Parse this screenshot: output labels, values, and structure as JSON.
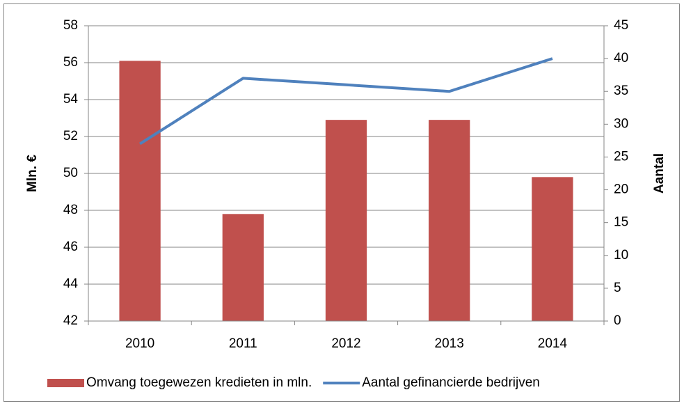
{
  "chart_data": {
    "type": "bar_line",
    "categories": [
      "2010",
      "2011",
      "2012",
      "2013",
      "2014"
    ],
    "series": [
      {
        "name": "Omvang toegewezen kredieten in mln.",
        "type": "bar",
        "color": "#c0504d",
        "values": [
          56.1,
          47.8,
          52.9,
          52.9,
          49.8
        ]
      },
      {
        "name": "Aantal gefinancierde bedrijven",
        "type": "line",
        "axis": "y2",
        "color": "#4f81bd",
        "values": [
          27,
          37,
          36,
          35,
          40
        ]
      }
    ],
    "ylabel": "Mln. €",
    "y2label": "Aantal",
    "ylim": [
      42,
      58
    ],
    "yticks": [
      42,
      44,
      46,
      48,
      50,
      52,
      54,
      56,
      58
    ],
    "y2lim": [
      0,
      45
    ],
    "y2ticks": [
      0,
      5,
      10,
      15,
      20,
      25,
      30,
      35,
      40,
      45
    ],
    "grid": true,
    "legend": "bottom"
  }
}
